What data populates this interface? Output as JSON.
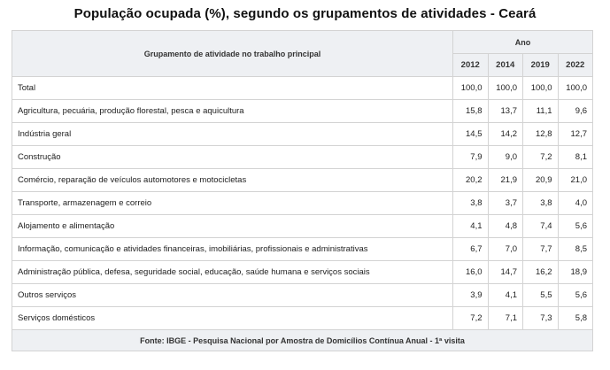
{
  "title": "População ocupada (%), segundo os grupamentos de atividades - Ceará",
  "table": {
    "group_header": "Grupamento de atividade no trabalho principal",
    "ano_header": "Ano",
    "years": [
      "2012",
      "2014",
      "2019",
      "2022"
    ],
    "rows": [
      {
        "label": "Total",
        "values": [
          "100,0",
          "100,0",
          "100,0",
          "100,0"
        ]
      },
      {
        "label": "Agricultura, pecuária, produção florestal, pesca e aquicultura",
        "values": [
          "15,8",
          "13,7",
          "11,1",
          "9,6"
        ]
      },
      {
        "label": "Indústria geral",
        "values": [
          "14,5",
          "14,2",
          "12,8",
          "12,7"
        ]
      },
      {
        "label": "Construção",
        "values": [
          "7,9",
          "9,0",
          "7,2",
          "8,1"
        ]
      },
      {
        "label": "Comércio, reparação de veículos automotores e motocicletas",
        "values": [
          "20,2",
          "21,9",
          "20,9",
          "21,0"
        ]
      },
      {
        "label": "Transporte, armazenagem e correio",
        "values": [
          "3,8",
          "3,7",
          "3,8",
          "4,0"
        ]
      },
      {
        "label": "Alojamento e alimentação",
        "values": [
          "4,1",
          "4,8",
          "7,4",
          "5,6"
        ]
      },
      {
        "label": "Informação, comunicação e atividades financeiras, imobiliárias, profissionais e administrativas",
        "values": [
          "6,7",
          "7,0",
          "7,7",
          "8,5"
        ]
      },
      {
        "label": "Administração pública, defesa, seguridade social, educação, saúde humana e serviços sociais",
        "values": [
          "16,0",
          "14,7",
          "16,2",
          "18,9"
        ]
      },
      {
        "label": "Outros serviços",
        "values": [
          "3,9",
          "4,1",
          "5,5",
          "5,6"
        ]
      },
      {
        "label": "Serviços domésticos",
        "values": [
          "7,2",
          "7,1",
          "7,3",
          "5,8"
        ]
      }
    ],
    "footer": "Fonte: IBGE - Pesquisa Nacional por Amostra de Domicílios Contínua Anual - 1ª visita"
  }
}
